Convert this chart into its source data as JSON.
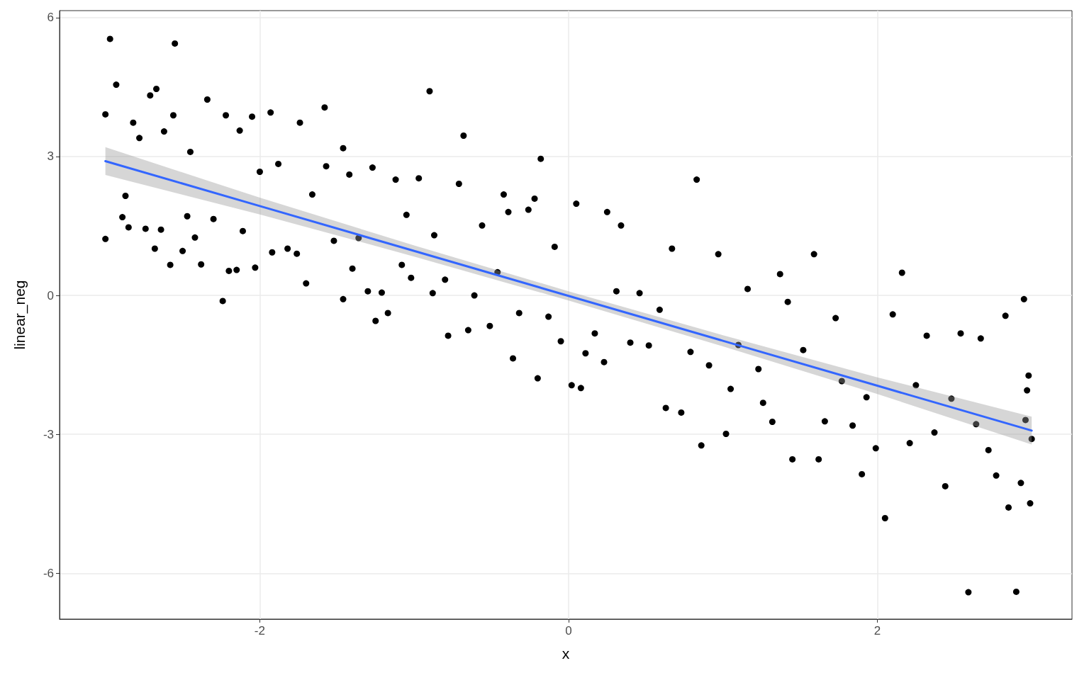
{
  "chart_data": {
    "type": "scatter",
    "xlabel": "x",
    "ylabel": "linear_neg",
    "xlim": [
      -3.297,
      3.261
    ],
    "ylim": [
      -6.99,
      6.15
    ],
    "xticks": [
      -2,
      0,
      2
    ],
    "yticks": [
      -6,
      -3,
      0,
      3,
      6
    ],
    "grid": true,
    "series": [
      {
        "color": "#000000",
        "marker": "circle",
        "x": [
          -3.0,
          -3.0,
          -2.97,
          -2.93,
          -2.89,
          -2.87,
          -2.85,
          -2.82,
          -2.78,
          -2.74,
          -2.71,
          -2.68,
          -2.67,
          -2.64,
          -2.62,
          -2.58,
          -2.55,
          -2.56,
          -2.5,
          -2.47,
          -2.45,
          -2.42,
          -2.38,
          -2.34,
          -2.3,
          -2.24,
          -2.22,
          -2.2,
          -2.15,
          -2.13,
          -2.11,
          -2.05,
          -2.03,
          -2.0,
          -1.93,
          -1.92,
          -1.88,
          -1.82,
          -1.74,
          -1.76,
          -1.7,
          -1.66,
          -1.58,
          -1.57,
          -1.52,
          -1.46,
          -1.46,
          -1.42,
          -1.4,
          -1.36,
          -1.3,
          -1.27,
          -1.25,
          -1.21,
          -1.17,
          -1.12,
          -1.08,
          -1.05,
          -1.02,
          -0.97,
          -0.9,
          -0.88,
          -0.87,
          -0.8,
          -0.78,
          -0.68,
          -0.71,
          -0.65,
          -0.61,
          -0.56,
          -0.51,
          -0.46,
          -0.42,
          -0.39,
          -0.36,
          -0.32,
          -0.26,
          -0.22,
          -0.2,
          -0.18,
          -0.13,
          -0.09,
          -0.05,
          0.02,
          0.05,
          0.08,
          0.11,
          0.17,
          0.23,
          0.25,
          0.31,
          0.34,
          0.4,
          0.46,
          0.52,
          0.59,
          0.63,
          0.67,
          0.73,
          0.79,
          0.83,
          0.86,
          0.91,
          0.97,
          1.02,
          1.05,
          1.1,
          1.16,
          1.23,
          1.26,
          1.32,
          1.37,
          1.42,
          1.45,
          1.52,
          1.59,
          1.62,
          1.66,
          1.73,
          1.77,
          1.84,
          1.9,
          1.93,
          1.99,
          2.05,
          2.1,
          2.16,
          2.21,
          2.25,
          2.32,
          2.37,
          2.44,
          2.48,
          2.54,
          2.59,
          2.64,
          2.67,
          2.72,
          2.77,
          2.83,
          2.85,
          2.9,
          2.93,
          2.95,
          2.97,
          2.98,
          2.99,
          3.0,
          2.96
        ],
        "values": [
          1.22,
          3.91,
          5.54,
          4.55,
          1.69,
          2.15,
          1.47,
          3.73,
          3.4,
          1.44,
          4.32,
          1.01,
          4.46,
          1.42,
          3.54,
          0.66,
          5.44,
          3.89,
          0.96,
          1.71,
          3.1,
          1.25,
          0.67,
          4.23,
          1.65,
          -0.12,
          3.89,
          0.53,
          0.55,
          3.56,
          1.39,
          3.86,
          0.6,
          2.67,
          3.95,
          0.93,
          2.84,
          1.01,
          3.73,
          0.9,
          0.26,
          2.18,
          4.06,
          2.79,
          1.18,
          3.18,
          -0.08,
          2.61,
          0.58,
          1.24,
          0.09,
          2.76,
          -0.55,
          0.06,
          -0.38,
          2.5,
          0.66,
          1.74,
          0.38,
          2.53,
          4.41,
          0.05,
          1.3,
          0.34,
          -0.87,
          3.45,
          2.41,
          -0.75,
          0.0,
          1.51,
          -0.66,
          0.5,
          2.18,
          1.8,
          -1.36,
          -0.38,
          1.85,
          2.09,
          -1.79,
          2.95,
          -0.46,
          1.05,
          -0.99,
          -1.94,
          1.98,
          -2.0,
          -1.25,
          -0.82,
          -1.44,
          1.8,
          0.09,
          1.51,
          -1.02,
          0.05,
          -1.08,
          -0.31,
          -2.43,
          1.01,
          -2.53,
          -1.22,
          2.5,
          -3.24,
          -1.51,
          0.89,
          -2.99,
          -2.02,
          -1.07,
          0.14,
          -1.59,
          -2.32,
          -2.73,
          0.46,
          -0.14,
          -3.54,
          -1.18,
          0.89,
          -3.54,
          -2.72,
          -0.49,
          -1.85,
          -2.81,
          -3.86,
          -2.2,
          -3.3,
          -4.81,
          -0.41,
          0.49,
          -3.19,
          -1.94,
          -0.87,
          -2.96,
          -4.12,
          -2.23,
          -0.82,
          -6.41,
          -2.78,
          -0.93,
          -3.34,
          -3.89,
          -0.44,
          -4.58,
          -6.4,
          -4.05,
          -0.08,
          -2.05,
          -1.73,
          -4.49,
          -3.1,
          -2.69
        ]
      },
      {
        "type": "line",
        "color": "#3366ff",
        "marker": "none",
        "x": [
          -3,
          -2,
          -1,
          0,
          1,
          2,
          3
        ],
        "values": [
          2.9,
          1.93,
          0.96,
          -0.01,
          -0.98,
          -1.95,
          -2.92
        ],
        "lower": [
          2.6,
          1.75,
          0.84,
          -0.11,
          -1.1,
          -2.13,
          -3.22
        ],
        "upper": [
          3.2,
          2.11,
          1.08,
          0.09,
          -0.86,
          -1.77,
          -2.62
        ]
      }
    ]
  }
}
